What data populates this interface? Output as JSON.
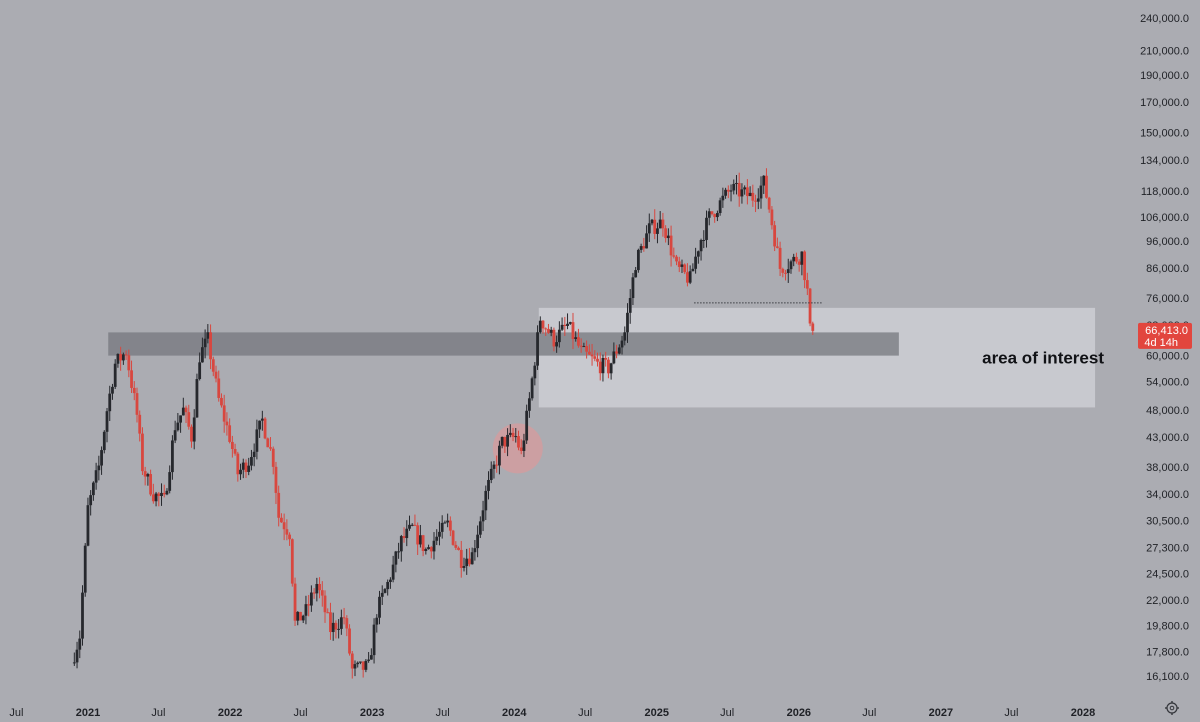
{
  "chart_data": {
    "type": "candlestick",
    "title": "",
    "y_scale": "log",
    "ylim": [
      15000,
      250000
    ],
    "xlim": [
      "2020-07-01",
      "2028-02-01"
    ],
    "y_ticks": [
      "240,000.0",
      "210,000.0",
      "190,000.0",
      "170,000.0",
      "150,000.0",
      "134,000.0",
      "118,000.0",
      "106,000.0",
      "96,000.0",
      "86,000.0",
      "76,000.0",
      "68,000.0",
      "60,000.0",
      "54,000.0",
      "48,000.0",
      "43,000.0",
      "38,000.0",
      "34,000.0",
      "30,500.0",
      "27,300.0",
      "24,500.0",
      "22,000.0",
      "19,800.0",
      "17,800.0",
      "16,100.0"
    ],
    "x_ticks": [
      {
        "date": "2020-07-01",
        "label": "Jul"
      },
      {
        "date": "2021-01-01",
        "label": "2021"
      },
      {
        "date": "2021-07-01",
        "label": "Jul"
      },
      {
        "date": "2022-01-01",
        "label": "2022"
      },
      {
        "date": "2022-07-01",
        "label": "Jul"
      },
      {
        "date": "2023-01-01",
        "label": "2023"
      },
      {
        "date": "2023-07-01",
        "label": "Jul"
      },
      {
        "date": "2024-01-01",
        "label": "2024"
      },
      {
        "date": "2024-07-01",
        "label": "Jul"
      },
      {
        "date": "2025-01-01",
        "label": "2025"
      },
      {
        "date": "2025-07-01",
        "label": "Jul"
      },
      {
        "date": "2026-01-01",
        "label": "2026"
      },
      {
        "date": "2026-07-01",
        "label": "Jul"
      },
      {
        "date": "2027-01-01",
        "label": "2027"
      },
      {
        "date": "2027-07-01",
        "label": "Jul"
      },
      {
        "date": "2028-01-01",
        "label": "2028"
      }
    ],
    "price_path": [
      [
        "2020-11-23",
        17000
      ],
      [
        "2020-12-14",
        19000
      ],
      [
        "2021-01-04",
        32000
      ],
      [
        "2021-02-01",
        38000
      ],
      [
        "2021-02-22",
        48000
      ],
      [
        "2021-03-15",
        58000
      ],
      [
        "2021-04-12",
        61000
      ],
      [
        "2021-05-10",
        47000
      ],
      [
        "2021-05-24",
        38000
      ],
      [
        "2021-06-21",
        34000
      ],
      [
        "2021-07-19",
        33000
      ],
      [
        "2021-08-16",
        45000
      ],
      [
        "2021-09-06",
        48000
      ],
      [
        "2021-09-27",
        43000
      ],
      [
        "2021-10-18",
        60000
      ],
      [
        "2021-11-08",
        64000
      ],
      [
        "2021-12-06",
        50000
      ],
      [
        "2022-01-03",
        43000
      ],
      [
        "2022-01-24",
        37000
      ],
      [
        "2022-02-21",
        39000
      ],
      [
        "2022-03-28",
        46000
      ],
      [
        "2022-04-25",
        39000
      ],
      [
        "2022-05-09",
        31000
      ],
      [
        "2022-06-06",
        29000
      ],
      [
        "2022-06-20",
        20000
      ],
      [
        "2022-07-18",
        21000
      ],
      [
        "2022-08-15",
        23500
      ],
      [
        "2022-09-19",
        19500
      ],
      [
        "2022-10-24",
        20500
      ],
      [
        "2022-11-14",
        16500
      ],
      [
        "2022-12-26",
        16700
      ],
      [
        "2023-01-16",
        21000
      ],
      [
        "2023-02-13",
        23500
      ],
      [
        "2023-03-20",
        28000
      ],
      [
        "2023-04-17",
        29500
      ],
      [
        "2023-05-22",
        27000
      ],
      [
        "2023-06-19",
        28500
      ],
      [
        "2023-07-17",
        30000
      ],
      [
        "2023-08-21",
        26000
      ],
      [
        "2023-09-18",
        26500
      ],
      [
        "2023-10-23",
        34000
      ],
      [
        "2023-12-04",
        42000
      ],
      [
        "2024-01-08",
        43000
      ],
      [
        "2024-01-22",
        40000
      ],
      [
        "2024-02-12",
        50000
      ],
      [
        "2024-03-11",
        70000
      ],
      [
        "2024-04-15",
        64000
      ],
      [
        "2024-05-20",
        68000
      ],
      [
        "2024-06-24",
        61000
      ],
      [
        "2024-08-05",
        58000
      ],
      [
        "2024-09-02",
        57000
      ],
      [
        "2024-10-14",
        66000
      ],
      [
        "2024-11-11",
        88000
      ],
      [
        "2024-12-16",
        101000
      ],
      [
        "2025-01-20",
        104000
      ],
      [
        "2025-02-24",
        86000
      ],
      [
        "2025-03-31",
        82000
      ],
      [
        "2025-04-21",
        94000
      ],
      [
        "2025-05-19",
        106000
      ],
      [
        "2025-07-14",
        119000
      ],
      [
        "2025-08-11",
        117000
      ],
      [
        "2025-09-08",
        115000
      ],
      [
        "2025-10-06",
        122000
      ],
      [
        "2025-10-20",
        110000
      ],
      [
        "2025-11-17",
        86000
      ],
      [
        "2025-12-15",
        88000
      ],
      [
        "2026-01-12",
        91000
      ],
      [
        "2026-01-26",
        78000
      ],
      [
        "2026-02-02",
        66413
      ]
    ],
    "marker_circle": {
      "date": "2024-01-10",
      "price": 41000
    },
    "resistance_band": {
      "from": "2021-02-22",
      "to": "2026-09-15",
      "low": 60000,
      "high": 66000
    },
    "interest_zone": {
      "from": "2024-03-04",
      "to": "2028-02-01",
      "low": 48500,
      "high": 73000,
      "label": "area of interest"
    },
    "dotted_level": {
      "from": "2025-04-07",
      "to": "2026-03-01",
      "price": 74500
    },
    "last_price": {
      "value": 66413,
      "label": "66,413.0",
      "countdown": "4d 14h"
    },
    "colors": {
      "up": "#26282d",
      "down": "#d8473f",
      "band": "#75777d",
      "zone": "#d2d3d8",
      "circle": "#e89595",
      "tag": "#e2463e",
      "bg": "#abacb2"
    }
  },
  "settings_icon": "gear-icon"
}
